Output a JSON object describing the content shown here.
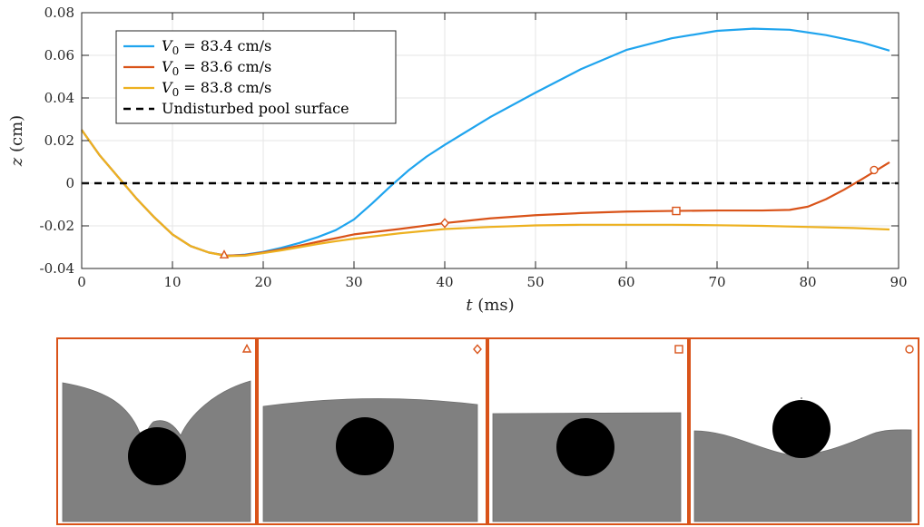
{
  "chart_data": {
    "type": "line",
    "xlabel": {
      "var": "t",
      "unit": "(ms)"
    },
    "ylabel": {
      "var": "z",
      "unit": "(cm)"
    },
    "xlim": [
      0,
      90
    ],
    "ylim": [
      -0.04,
      0.08
    ],
    "xticks": [
      "0",
      "10",
      "20",
      "30",
      "40",
      "50",
      "60",
      "70",
      "80",
      "90"
    ],
    "yticks": [
      "-0.04",
      "-0.02",
      "0",
      "0.02",
      "0.04",
      "0.06",
      "0.08"
    ],
    "grid": true,
    "legend_position": "top-left",
    "series": [
      {
        "name": "V_0 = 83.4 cm/s",
        "legend_var": "V",
        "legend_sub": "0",
        "legend_rest": " = 83.4 cm/s",
        "color": "#1fa4ee",
        "x": [
          0,
          2,
          4,
          6,
          8,
          10,
          12,
          14,
          16,
          18,
          20,
          22,
          24,
          26,
          28,
          30,
          32,
          34,
          36,
          38,
          40,
          45,
          50,
          55,
          60,
          65,
          70,
          74,
          78,
          82,
          86,
          89
        ],
        "y": [
          0.025,
          0.013,
          0.003,
          -0.007,
          -0.016,
          -0.024,
          -0.0295,
          -0.0325,
          -0.034,
          -0.0335,
          -0.0322,
          -0.0303,
          -0.028,
          -0.0253,
          -0.022,
          -0.017,
          -0.0095,
          -0.0015,
          0.006,
          0.0125,
          0.018,
          0.031,
          0.0425,
          0.0535,
          0.0625,
          0.068,
          0.0715,
          0.0725,
          0.072,
          0.0695,
          0.066,
          0.0622
        ]
      },
      {
        "name": "V_0 = 83.6 cm/s",
        "legend_var": "V",
        "legend_sub": "0",
        "legend_rest": " = 83.6 cm/s",
        "color": "#d95319",
        "x": [
          0,
          2,
          4,
          6,
          8,
          10,
          12,
          14,
          16,
          18,
          20,
          22,
          24,
          26,
          28,
          30,
          35,
          40,
          45,
          50,
          55,
          60,
          65,
          70,
          75,
          78,
          80,
          82,
          84,
          86,
          88,
          89
        ],
        "y": [
          0.025,
          0.013,
          0.003,
          -0.007,
          -0.016,
          -0.024,
          -0.0295,
          -0.0325,
          -0.034,
          -0.0337,
          -0.0325,
          -0.031,
          -0.0293,
          -0.0275,
          -0.0258,
          -0.024,
          -0.0215,
          -0.0187,
          -0.0165,
          -0.015,
          -0.014,
          -0.0133,
          -0.013,
          -0.0128,
          -0.0128,
          -0.0125,
          -0.011,
          -0.0075,
          -0.003,
          0.002,
          0.0072,
          0.0098
        ]
      },
      {
        "name": "V_0 = 83.8 cm/s",
        "legend_var": "V",
        "legend_sub": "0",
        "legend_rest": " = 83.8 cm/s",
        "color": "#edb120",
        "x": [
          0,
          2,
          4,
          6,
          8,
          10,
          12,
          14,
          16,
          18,
          20,
          22,
          24,
          26,
          28,
          30,
          35,
          40,
          45,
          50,
          55,
          60,
          65,
          70,
          75,
          80,
          85,
          89
        ],
        "y": [
          0.025,
          0.013,
          0.003,
          -0.007,
          -0.016,
          -0.024,
          -0.0295,
          -0.0325,
          -0.0342,
          -0.034,
          -0.0328,
          -0.0315,
          -0.03,
          -0.0285,
          -0.0272,
          -0.026,
          -0.0235,
          -0.0215,
          -0.0205,
          -0.0198,
          -0.0195,
          -0.0195,
          -0.0195,
          -0.0197,
          -0.02,
          -0.0205,
          -0.021,
          -0.0217
        ]
      },
      {
        "name": "Undisturbed pool surface",
        "color": "#000000",
        "dashed": true,
        "x": [
          0,
          90
        ],
        "y": [
          0,
          0
        ]
      }
    ],
    "markers": [
      {
        "shape": "triangle",
        "x": 15.7,
        "y": -0.0337,
        "color": "#d95319"
      },
      {
        "shape": "diamond",
        "x": 40,
        "y": -0.0187,
        "color": "#d95319"
      },
      {
        "shape": "square",
        "x": 65.5,
        "y": -0.013,
        "color": "#d95319"
      },
      {
        "shape": "circle",
        "x": 87.3,
        "y": 0.0062,
        "color": "#d95319"
      }
    ]
  },
  "snapshots": [
    {
      "marker": "triangle",
      "scene": "crater"
    },
    {
      "marker": "diamond",
      "scene": "dome"
    },
    {
      "marker": "square",
      "scene": "flat"
    },
    {
      "marker": "circle",
      "scene": "bounce"
    }
  ],
  "colors": {
    "frame": "#d95319",
    "liquid": "#808080",
    "drop": "#000000",
    "grid": "#e6e6e6",
    "axis": "#262626"
  }
}
